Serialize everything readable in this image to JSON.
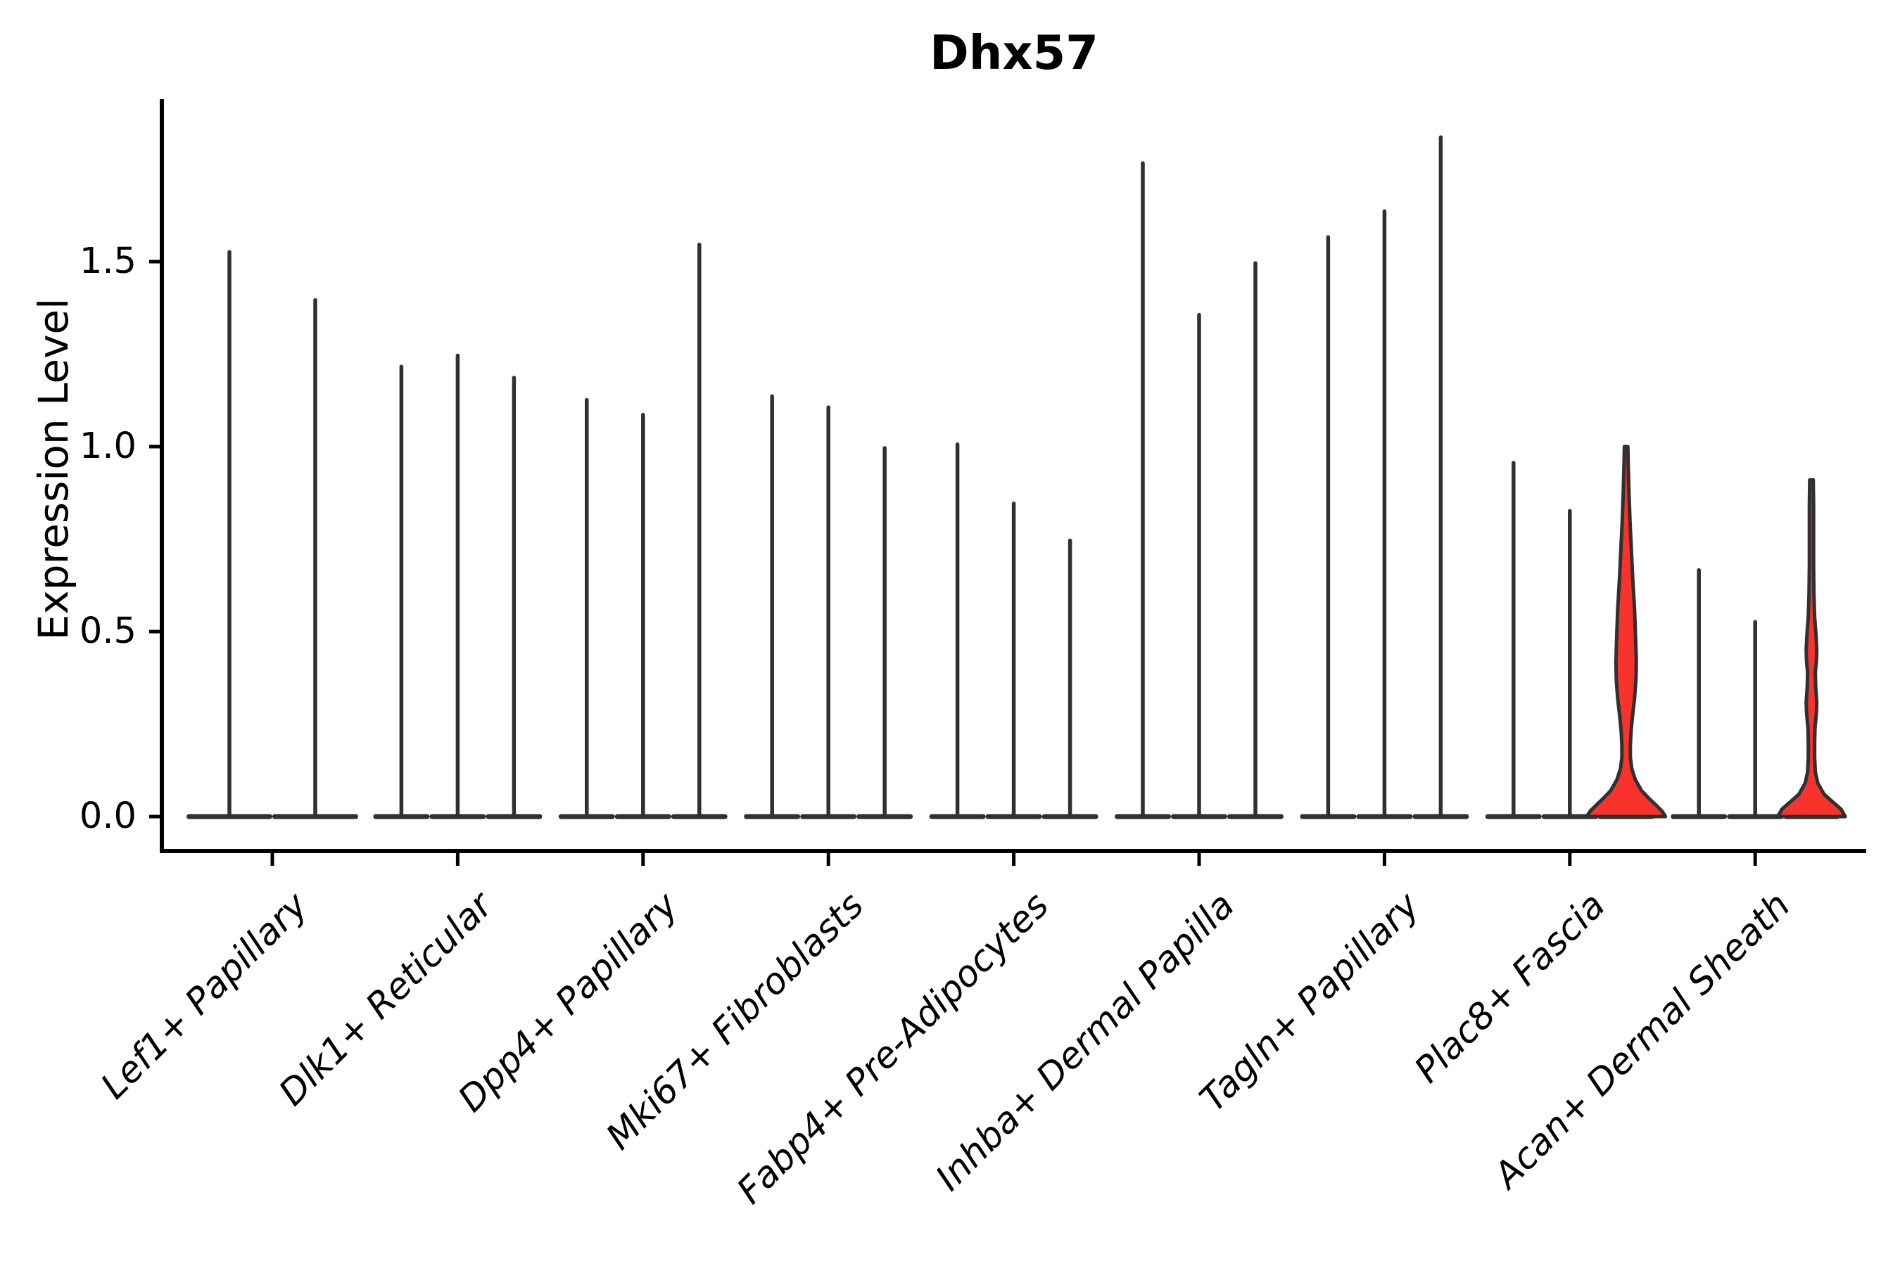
{
  "title": "Dhx57",
  "chart_data": {
    "type": "violin",
    "title": "Dhx57",
    "ylabel": "Expression Level",
    "xlabel": "",
    "ylim": [
      0,
      1.94
    ],
    "grid": false,
    "legend": null,
    "y_axis": {
      "ticks": [
        {
          "value": 0.0,
          "label": "0.0"
        },
        {
          "value": 0.5,
          "label": "0.5"
        },
        {
          "value": 1.0,
          "label": "1.0"
        },
        {
          "value": 1.5,
          "label": "1.5"
        }
      ]
    },
    "colors": {
      "violin_outline": "#303030",
      "highlight_fill": "#f8332c",
      "axis": "#000000"
    },
    "groups": [
      {
        "category": "Lef1+ Papillary",
        "violins": [
          {
            "max": 1.53,
            "fill": "none"
          },
          {
            "max": 1.4,
            "fill": "none"
          }
        ]
      },
      {
        "category": "Dlk1+ Reticular",
        "violins": [
          {
            "max": 1.22,
            "fill": "none"
          },
          {
            "max": 1.25,
            "fill": "none"
          },
          {
            "max": 1.19,
            "fill": "none"
          }
        ]
      },
      {
        "category": "Dpp4+ Papillary",
        "violins": [
          {
            "max": 1.13,
            "fill": "none"
          },
          {
            "max": 1.09,
            "fill": "none"
          },
          {
            "max": 1.55,
            "fill": "none"
          }
        ]
      },
      {
        "category": "Mki67+ Fibroblasts",
        "violins": [
          {
            "max": 1.14,
            "fill": "none"
          },
          {
            "max": 1.11,
            "fill": "none"
          },
          {
            "max": 1.0,
            "fill": "none"
          }
        ]
      },
      {
        "category": "Fabp4+ Pre-Adipocytes",
        "violins": [
          {
            "max": 1.01,
            "fill": "none"
          },
          {
            "max": 0.85,
            "fill": "none"
          },
          {
            "max": 0.75,
            "fill": "none"
          }
        ]
      },
      {
        "category": "Inhba+ Dermal Papilla",
        "violins": [
          {
            "max": 1.77,
            "fill": "none"
          },
          {
            "max": 1.36,
            "fill": "none"
          },
          {
            "max": 1.5,
            "fill": "none"
          }
        ]
      },
      {
        "category": "Tagln+ Papillary",
        "violins": [
          {
            "max": 1.57,
            "fill": "none"
          },
          {
            "max": 1.64,
            "fill": "none"
          },
          {
            "max": 1.84,
            "fill": "none"
          }
        ]
      },
      {
        "category": "Plac8+ Fascia",
        "violins": [
          {
            "max": 0.96,
            "fill": "none"
          },
          {
            "max": 0.83,
            "fill": "none"
          },
          {
            "max": 1.0,
            "fill": "highlight",
            "profile": [
              [
                1.0,
                2.5
              ],
              [
                0.95,
                3
              ],
              [
                0.88,
                4
              ],
              [
                0.8,
                5.5
              ],
              [
                0.72,
                7.5
              ],
              [
                0.64,
                9.5
              ],
              [
                0.56,
                12
              ],
              [
                0.48,
                13.5
              ],
              [
                0.42,
                14.5
              ],
              [
                0.37,
                14
              ],
              [
                0.32,
                12
              ],
              [
                0.27,
                9
              ],
              [
                0.23,
                7
              ],
              [
                0.19,
                6
              ],
              [
                0.16,
                6
              ],
              [
                0.13,
                8
              ],
              [
                0.1,
                13
              ],
              [
                0.07,
                22
              ],
              [
                0.05,
                32
              ],
              [
                0.03,
                43
              ],
              [
                0.015,
                51
              ],
              [
                0.0,
                56
              ]
            ]
          }
        ]
      },
      {
        "category": "Acan+ Dermal Sheath",
        "violins": [
          {
            "max": 0.67,
            "fill": "none"
          },
          {
            "max": 0.53,
            "fill": "none"
          },
          {
            "max": 0.91,
            "fill": "highlight",
            "profile": [
              [
                0.91,
                2.5
              ],
              [
                0.84,
                3
              ],
              [
                0.76,
                3
              ],
              [
                0.68,
                3
              ],
              [
                0.6,
                3.5
              ],
              [
                0.54,
                4.5
              ],
              [
                0.49,
                6.5
              ],
              [
                0.45,
                7.5
              ],
              [
                0.42,
                7
              ],
              [
                0.39,
                5.5
              ],
              [
                0.35,
                6
              ],
              [
                0.31,
                7.5
              ],
              [
                0.28,
                7
              ],
              [
                0.24,
                5
              ],
              [
                0.2,
                4.5
              ],
              [
                0.16,
                4.5
              ],
              [
                0.12,
                5.5
              ],
              [
                0.09,
                9
              ],
              [
                0.06,
                18
              ],
              [
                0.04,
                30
              ],
              [
                0.02,
                42
              ],
              [
                0.0,
                48
              ]
            ]
          }
        ]
      }
    ]
  }
}
